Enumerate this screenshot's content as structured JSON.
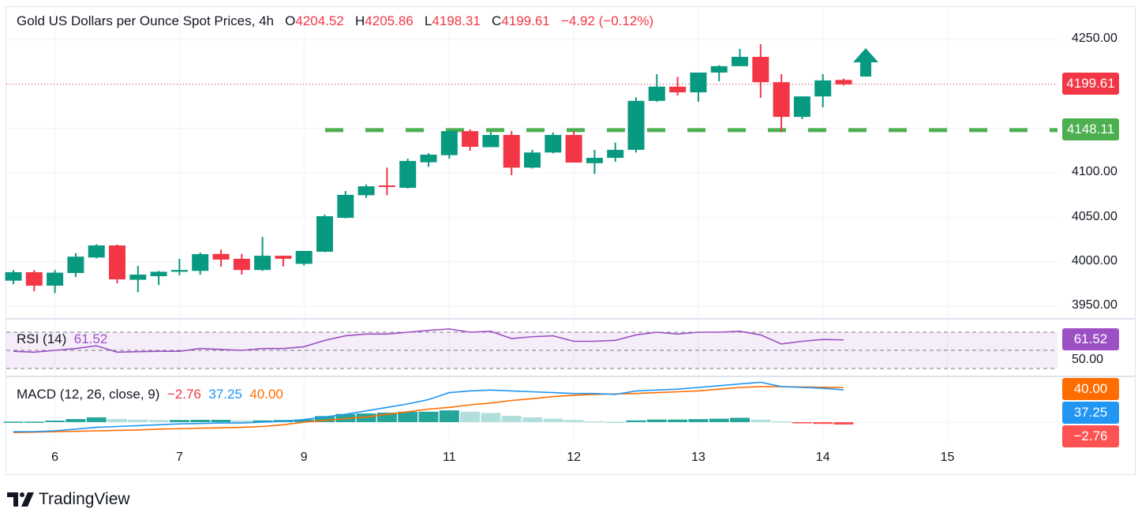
{
  "header": {
    "title": "Gold US Dollars per Ounce Spot Prices, 4h",
    "o_label": "O",
    "o": "4204.52",
    "h_label": "H",
    "h": "4205.86",
    "l_label": "L",
    "l": "4198.31",
    "c_label": "C",
    "c": "4199.61",
    "change": "−4.92 (−0.12%)"
  },
  "colors": {
    "up": "#089981",
    "down": "#f23645",
    "support_line": "#4caf50",
    "rsi": "#9c50c4",
    "macd": "#2196f3",
    "signal": "#ff6d00",
    "hist_up_strong": "#26a69a",
    "hist_up_weak": "#b2dfdb",
    "hist_down": "#ff5252"
  },
  "chart_data": [
    {
      "type": "candlestick",
      "title": "Gold US Dollars per Ounce Spot Prices, 4h",
      "ylim": [
        3925,
        4265
      ],
      "y_ticks": [
        "4250.00",
        "4100.00",
        "4050.00",
        "4000.00",
        "3950.00"
      ],
      "grid": true,
      "x_ticks": [
        {
          "label": "6",
          "at_candle": 3
        },
        {
          "label": "7",
          "at_candle": 9
        },
        {
          "label": "9",
          "at_candle": 15
        },
        {
          "label": "11",
          "at_candle": 22
        },
        {
          "label": "12",
          "at_candle": 28
        },
        {
          "label": "13",
          "at_candle": 34
        },
        {
          "label": "14",
          "at_candle": 40
        },
        {
          "label": "15",
          "at_candle": 46
        }
      ],
      "candles_ohlc": [
        [
          3979,
          3991,
          3975,
          3988.5
        ],
        [
          3988.5,
          3991,
          3967,
          3973.4
        ],
        [
          3973.4,
          3991,
          3965,
          3988
        ],
        [
          3987.6,
          4010,
          3983,
          4006
        ],
        [
          4005,
          4020,
          4004,
          4018.6
        ],
        [
          4018.6,
          4019.5,
          3976,
          3980.5
        ],
        [
          3980,
          3995.6,
          3966,
          3985.8
        ],
        [
          3984,
          3990,
          3974,
          3989
        ],
        [
          3989,
          4003.6,
          3985,
          3991
        ],
        [
          3990,
          4010.6,
          3985.8,
          4008.8
        ],
        [
          4009,
          4014,
          3994.7,
          4002.7
        ],
        [
          4003.6,
          4009,
          3985.8,
          3991
        ],
        [
          3991,
          4028,
          3990,
          4007
        ],
        [
          4007,
          4007,
          3995,
          4003.6
        ],
        [
          3997.9,
          4012.4,
          3996,
          4012.4
        ],
        [
          4011.5,
          4053.2,
          4011,
          4051.4
        ],
        [
          4049.6,
          4079.8,
          4049,
          4075.4
        ],
        [
          4075,
          4087,
          4072,
          4085
        ],
        [
          4086,
          4106,
          4075,
          4084.5
        ],
        [
          4083.3,
          4116,
          4082.5,
          4113.5
        ],
        [
          4112,
          4122.3,
          4107,
          4120.6
        ],
        [
          4120,
          4148,
          4116,
          4147
        ],
        [
          4147,
          4149,
          4125,
          4129.4
        ],
        [
          4129,
          4146,
          4129,
          4142.7
        ],
        [
          4142.7,
          4147,
          4097.5,
          4106
        ],
        [
          4106,
          4126,
          4105,
          4123
        ],
        [
          4123,
          4145.4,
          4122,
          4142.7
        ],
        [
          4142.7,
          4147,
          4111.7,
          4111.7
        ],
        [
          4111,
          4126,
          4099,
          4117
        ],
        [
          4117,
          4134,
          4112.6,
          4126
        ],
        [
          4126,
          4185,
          4123,
          4181
        ],
        [
          4181,
          4211,
          4180,
          4197
        ],
        [
          4197,
          4208,
          4187,
          4190.6
        ],
        [
          4190.6,
          4212.8,
          4180,
          4212.8
        ],
        [
          4212.8,
          4221,
          4203,
          4220
        ],
        [
          4220,
          4239.4,
          4220,
          4230.5
        ],
        [
          4230.5,
          4244.7,
          4184.4,
          4202
        ],
        [
          4202,
          4211,
          4146,
          4163
        ],
        [
          4163,
          4186,
          4160.5,
          4186
        ],
        [
          4186,
          4211,
          4173.8,
          4204
        ],
        [
          4204.52,
          4205.86,
          4198.31,
          4199.61
        ]
      ],
      "last_price": "4199.61",
      "support_level": "4148.11",
      "annotation": "up-arrow"
    },
    {
      "type": "line",
      "name": "RSI (14)",
      "value": "61.52",
      "ylim": [
        0,
        100
      ],
      "bands": [
        30,
        50,
        70
      ],
      "y_tick": "50.00",
      "values": [
        49,
        48,
        50,
        52,
        55,
        48,
        48.5,
        49,
        49,
        52,
        51,
        50,
        52,
        52,
        54,
        61,
        66,
        68,
        68,
        70,
        72,
        73.5,
        70,
        71,
        63,
        65,
        66,
        60,
        60,
        61,
        67,
        70,
        68,
        70,
        70,
        71,
        67,
        57,
        60,
        62,
        61.52
      ]
    },
    {
      "type": "bar+line",
      "name": "MACD (12, 26, close, 9)",
      "hist_value": "−2.76",
      "macd_value": "37.25",
      "signal_value": "40.00",
      "histogram": [
        0.6,
        0.6,
        1.8,
        3.6,
        5.5,
        3.6,
        3,
        2.5,
        2.5,
        2.7,
        2.7,
        2,
        2,
        2.5,
        3,
        7,
        9.4,
        10,
        11,
        12,
        12,
        13.6,
        12,
        10.6,
        7.3,
        5.5,
        4,
        2.5,
        1,
        0.5,
        2,
        3,
        3,
        3.5,
        4,
        5,
        3,
        1,
        -0.5,
        -2,
        -2.76
      ],
      "macd": [
        -11,
        -11,
        -10,
        -8,
        -6,
        -5,
        -4,
        -3,
        -2,
        -1.5,
        -1,
        -1,
        0,
        1,
        3,
        6,
        9,
        13,
        17,
        21,
        26,
        34,
        36,
        37,
        36,
        35,
        34,
        33,
        33,
        32,
        36,
        37,
        38,
        40,
        42,
        44,
        46,
        41,
        40,
        39,
        37.25
      ],
      "signal": [
        -12,
        -11.5,
        -11,
        -10.5,
        -10,
        -9.5,
        -9,
        -8,
        -7.5,
        -7,
        -6.5,
        -6,
        -5,
        -3,
        0,
        2,
        4,
        6,
        9,
        12,
        15,
        17,
        20,
        22,
        25,
        27,
        29.5,
        31,
        32,
        32.5,
        33,
        34,
        35,
        36,
        38,
        40,
        41,
        41,
        40.5,
        40.2,
        40
      ]
    }
  ],
  "branding": {
    "name": "TradingView"
  }
}
